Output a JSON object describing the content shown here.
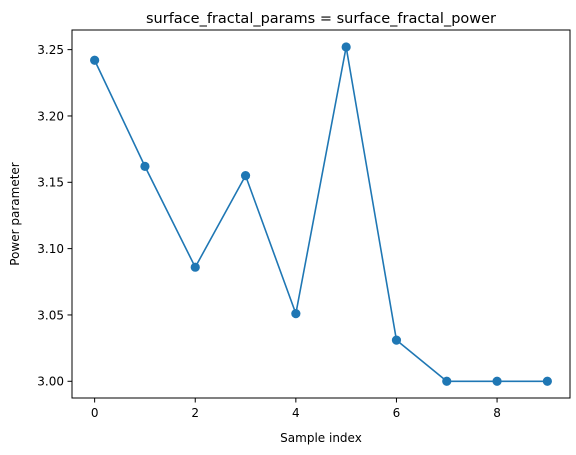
{
  "chart_data": {
    "type": "line",
    "title": "surface_fractal_params = surface_fractal_power",
    "xlabel": "Sample index",
    "ylabel": "Power parameter",
    "xlim": [
      -0.45,
      9.45
    ],
    "ylim": [
      2.9874,
      3.2648
    ],
    "x_ticks": [
      0,
      2,
      4,
      6,
      8
    ],
    "x_tick_labels": [
      "0",
      "2",
      "4",
      "6",
      "8"
    ],
    "y_ticks": [
      3.0,
      3.05,
      3.1,
      3.15,
      3.2,
      3.25
    ],
    "y_tick_labels": [
      "3.00",
      "3.05",
      "3.10",
      "3.15",
      "3.20",
      "3.25"
    ],
    "grid": false,
    "marker": "circle",
    "color": "#1f77b4",
    "series": [
      {
        "x": [
          0,
          1,
          2,
          3,
          4,
          5,
          6,
          7,
          8,
          9
        ],
        "values": [
          3.242,
          3.162,
          3.086,
          3.155,
          3.051,
          3.252,
          3.031,
          3.0,
          3.0,
          3.0
        ]
      }
    ]
  }
}
